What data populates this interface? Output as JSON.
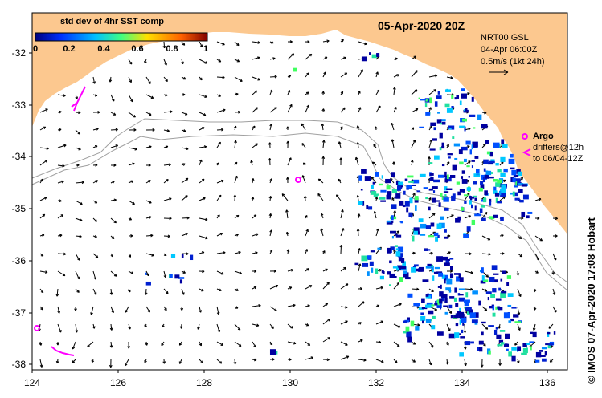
{
  "map": {
    "date_title": "05-Apr-2020 20Z",
    "colorbar": {
      "title": "std dev of 4hr SST comp",
      "ticks": [
        "0",
        "0.2",
        "0.4",
        "0.6",
        "0.8",
        "1"
      ],
      "colors": [
        "#000080",
        "#0030ff",
        "#00c0ff",
        "#40ff80",
        "#ffe000",
        "#ff6000",
        "#800000"
      ]
    },
    "current_info": {
      "line1": "NRT00 GSL",
      "line2": "04-Apr 06:00Z",
      "line3": "0.5m/s (1kt 24h)"
    },
    "argo": {
      "label": "Argo",
      "drifter_line1": "drifters@12h",
      "drifter_line2": "to 06/04-12Z"
    },
    "credit": "© IMOS 07-Apr-2020 17:08 Hobart",
    "lat_ticks": [
      "-32",
      "-33",
      "-34",
      "-35",
      "-36",
      "-37",
      "-38"
    ],
    "lon_ticks": [
      "124",
      "126",
      "128",
      "130",
      "132",
      "134",
      "136"
    ],
    "colors": {
      "land": "#fcc88f",
      "ocean": "#ffffff",
      "argo_marker": "#ff00ff",
      "current_arrows": "#000000",
      "bathymetry_contour": "#a0a0a0"
    }
  }
}
